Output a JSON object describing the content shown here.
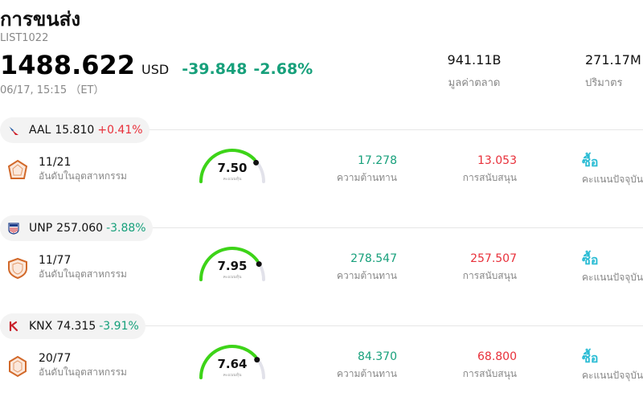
{
  "header": {
    "title": "การขนส่ง",
    "code": "LIST1022",
    "price": "1488.622",
    "currency": "USD",
    "change": "-39.848",
    "change_pct": "-2.68%",
    "timestamp": "06/17, 15:15 （ET）"
  },
  "stats": {
    "market_cap_value": "941.11B",
    "market_cap_label": "มูลค่าตลาด",
    "volume_value": "271.17M",
    "volume_label": "ปริมาตร"
  },
  "labels": {
    "rank": "อันดับในอุตสาหกรรม",
    "gauge": "คะแนนหุ้น",
    "resistance": "ความต้านทาน",
    "support": "การสนับสนุน",
    "rating": "คะแนนปัจจุบัน"
  },
  "stocks": [
    {
      "ticker": "AAL",
      "price": "15.810",
      "change_pct": "+0.41%",
      "direction": "up",
      "logo": "american-airlines-logo",
      "rank": "11/21",
      "score": "7.50",
      "score_fraction": 0.75,
      "resistance": "17.278",
      "support": "13.053",
      "rating": "ซื้อ"
    },
    {
      "ticker": "UNP",
      "price": "257.060",
      "change_pct": "-3.88%",
      "direction": "down",
      "logo": "union-pacific-logo",
      "rank": "11/77",
      "score": "7.95",
      "score_fraction": 0.795,
      "resistance": "278.547",
      "support": "257.507",
      "rating": "ซื้อ"
    },
    {
      "ticker": "KNX",
      "price": "74.315",
      "change_pct": "-3.91%",
      "direction": "down",
      "logo": "knight-swift-logo",
      "rank": "20/77",
      "score": "7.64",
      "score_fraction": 0.764,
      "resistance": "84.370",
      "support": "68.800",
      "rating": "ซื้อ"
    }
  ],
  "colors": {
    "up": "#e8303a",
    "down": "#17a07b",
    "gauge_fill": "#3dd418",
    "gauge_track": "#e2e2ea",
    "rating": "#2bbcd4"
  }
}
